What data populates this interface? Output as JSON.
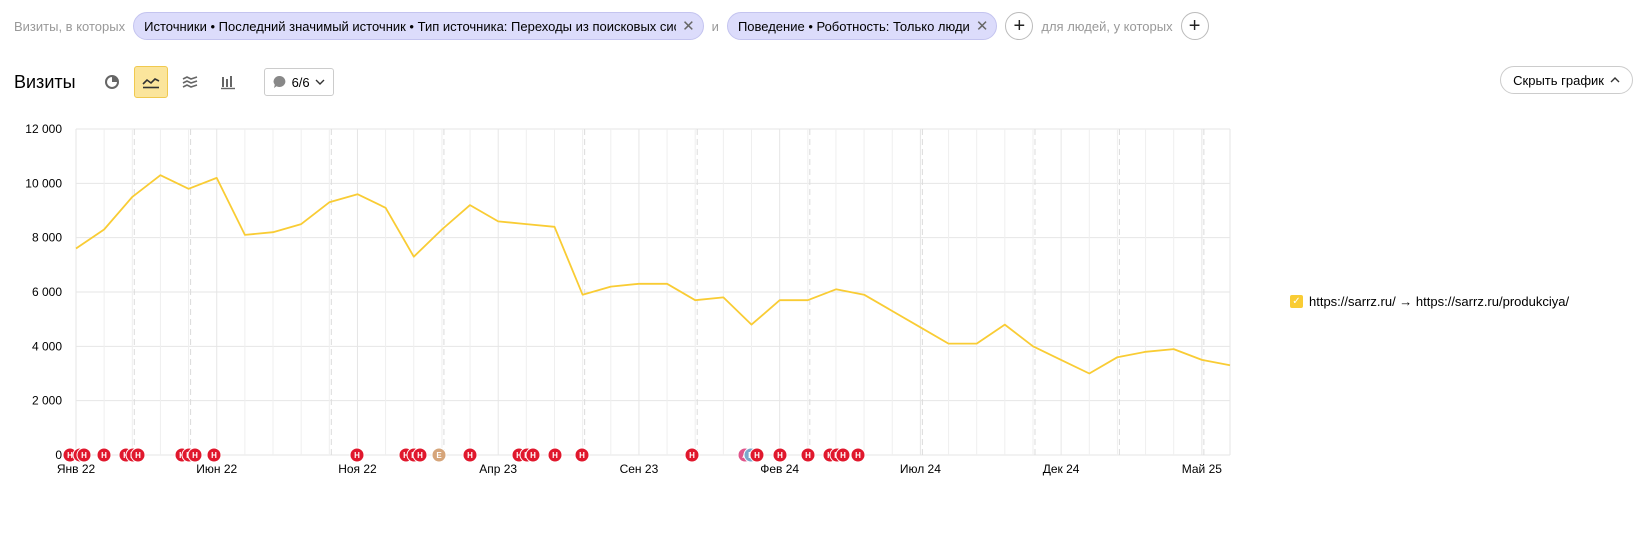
{
  "filters": {
    "prefix": "Визиты, в которых",
    "chip1": "Источники • Последний значимый источник • Тип источника: Переходы из поисковых систем",
    "chip1_short": "Источники • Последний значимый источник • Тип источника: Переходы из поисковых систем",
    "joiner": "и",
    "chip2": "Поведение • Роботность: Только люди",
    "people_label": "для людей, у которых",
    "close_glyph": "✕",
    "plus_glyph": "+"
  },
  "toolbar": {
    "title": "Визиты",
    "annotations_count": "6/6",
    "hide_chart_label": "Скрыть график",
    "chart_type_icons": [
      "pie-chart-icon",
      "line-chart-icon",
      "stacked-area-icon",
      "bar-chart-icon"
    ],
    "active_chart_type": "line"
  },
  "legend": {
    "label": "https://sarrz.ru/ → https://sarrz.ru/produkciya/",
    "checked": true,
    "color": "#f9cc34"
  },
  "chart_data": {
    "type": "line",
    "ylim": [
      0,
      12000
    ],
    "y_ticks": [
      "12 000",
      "10 000",
      "8 000",
      "6 000",
      "4 000",
      "2 000",
      "0"
    ],
    "x_tick_labels": [
      "Янв 22",
      "Июн 22",
      "Ноя 22",
      "Апр 23",
      "Сен 23",
      "Фев 24",
      "Июл 24",
      "Дек 24",
      "Май 25"
    ],
    "series": [
      {
        "name": "https://sarrz.ru/ → https://sarrz.ru/produkciya/",
        "color": "#f9cc34",
        "values": [
          7600,
          8300,
          9500,
          10300,
          9800,
          10200,
          8100,
          8200,
          8500,
          9300,
          9600,
          9100,
          7300,
          8300,
          9200,
          8600,
          8500,
          8400,
          5900,
          6200,
          6300,
          6300,
          5700,
          5800,
          4800,
          5700,
          5700,
          6100,
          5900,
          5300,
          4700,
          4100,
          4100,
          4800,
          4000,
          3500,
          3000,
          3600,
          3800,
          3900,
          3500,
          3300
        ]
      }
    ],
    "grid": true,
    "annotation_markers": [
      {
        "letter": "Н",
        "color": "#e0182d"
      },
      {
        "letter": "Н",
        "color": "#e0182d"
      },
      {
        "letter": "Н",
        "color": "#e0182d"
      },
      {
        "letter": "Н",
        "color": "#e0182d"
      },
      {
        "letter": "Н",
        "color": "#e0182d"
      },
      {
        "letter": "Н",
        "color": "#e0182d"
      },
      {
        "letter": "Н",
        "color": "#e0182d"
      },
      {
        "letter": "Н",
        "color": "#e0182d"
      },
      {
        "letter": "Н",
        "color": "#e0182d"
      },
      {
        "letter": "Н",
        "color": "#e0182d"
      },
      {
        "letter": "Н",
        "color": "#e0182d"
      },
      {
        "letter": "Н",
        "color": "#e0182d"
      },
      {
        "letter": "Н",
        "color": "#e0182d"
      },
      {
        "letter": "Н",
        "color": "#e0182d"
      },
      {
        "letter": "Н",
        "color": "#e0182d"
      },
      {
        "letter": "Е",
        "color": "#d6a57a"
      },
      {
        "letter": "Н",
        "color": "#e0182d"
      },
      {
        "letter": "Н",
        "color": "#e0182d"
      },
      {
        "letter": "Н",
        "color": "#e0182d"
      },
      {
        "letter": "Н",
        "color": "#e0182d"
      },
      {
        "letter": "Н",
        "color": "#e0182d"
      },
      {
        "letter": "Н",
        "color": "#e0182d"
      },
      {
        "letter": "Н",
        "color": "#e0182d"
      },
      {
        "letter": "А",
        "color": "#e0548a"
      },
      {
        "letter": "В",
        "color": "#7aa7cc"
      },
      {
        "letter": "Н",
        "color": "#e0182d"
      },
      {
        "letter": "Н",
        "color": "#e0182d"
      },
      {
        "letter": "Н",
        "color": "#e0182d"
      },
      {
        "letter": "Н",
        "color": "#e0182d"
      },
      {
        "letter": "Н",
        "color": "#e0182d"
      },
      {
        "letter": "Н",
        "color": "#e0182d"
      },
      {
        "letter": "Н",
        "color": "#e0182d"
      }
    ]
  }
}
